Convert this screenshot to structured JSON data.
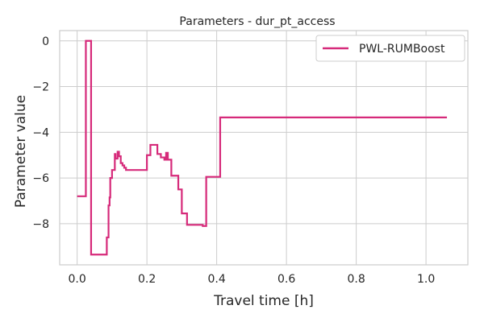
{
  "chart_data": {
    "type": "line",
    "title": "Parameters - dur_pt_access",
    "xlabel": "Travel time [h]",
    "ylabel": "Parameter value",
    "xlim": [
      -0.05,
      1.12
    ],
    "ylim": [
      -9.8,
      0.45
    ],
    "xticks": [
      0.0,
      0.2,
      0.4,
      0.6,
      0.8,
      1.0
    ],
    "xtick_labels": [
      "0.0",
      "0.2",
      "0.4",
      "0.6",
      "0.8",
      "1.0"
    ],
    "yticks": [
      0,
      -2,
      -4,
      -6,
      -8
    ],
    "ytick_labels": [
      "0",
      "−2",
      "−4",
      "−6",
      "−8"
    ],
    "grid": true,
    "legend_position": "top-right",
    "series": [
      {
        "name": "PWL-RUMBoost",
        "color": "#d62a7a",
        "step": "post",
        "x": [
          0.0,
          0.025,
          0.04,
          0.085,
          0.09,
          0.093,
          0.095,
          0.1,
          0.108,
          0.11,
          0.116,
          0.12,
          0.125,
          0.13,
          0.135,
          0.14,
          0.2,
          0.205,
          0.21,
          0.23,
          0.24,
          0.25,
          0.255,
          0.26,
          0.27,
          0.29,
          0.3,
          0.315,
          0.36,
          0.37,
          0.41,
          1.06
        ],
        "y": [
          -6.8,
          0.0,
          -9.35,
          -8.6,
          -7.2,
          -6.85,
          -6.0,
          -5.65,
          -4.95,
          -5.15,
          -4.85,
          -5.05,
          -5.35,
          -5.45,
          -5.55,
          -5.65,
          -5.0,
          -5.0,
          -4.55,
          -4.95,
          -5.1,
          -5.2,
          -4.9,
          -5.2,
          -5.9,
          -6.5,
          -7.55,
          -8.05,
          -8.1,
          -5.95,
          -3.35,
          -3.35
        ]
      }
    ]
  }
}
